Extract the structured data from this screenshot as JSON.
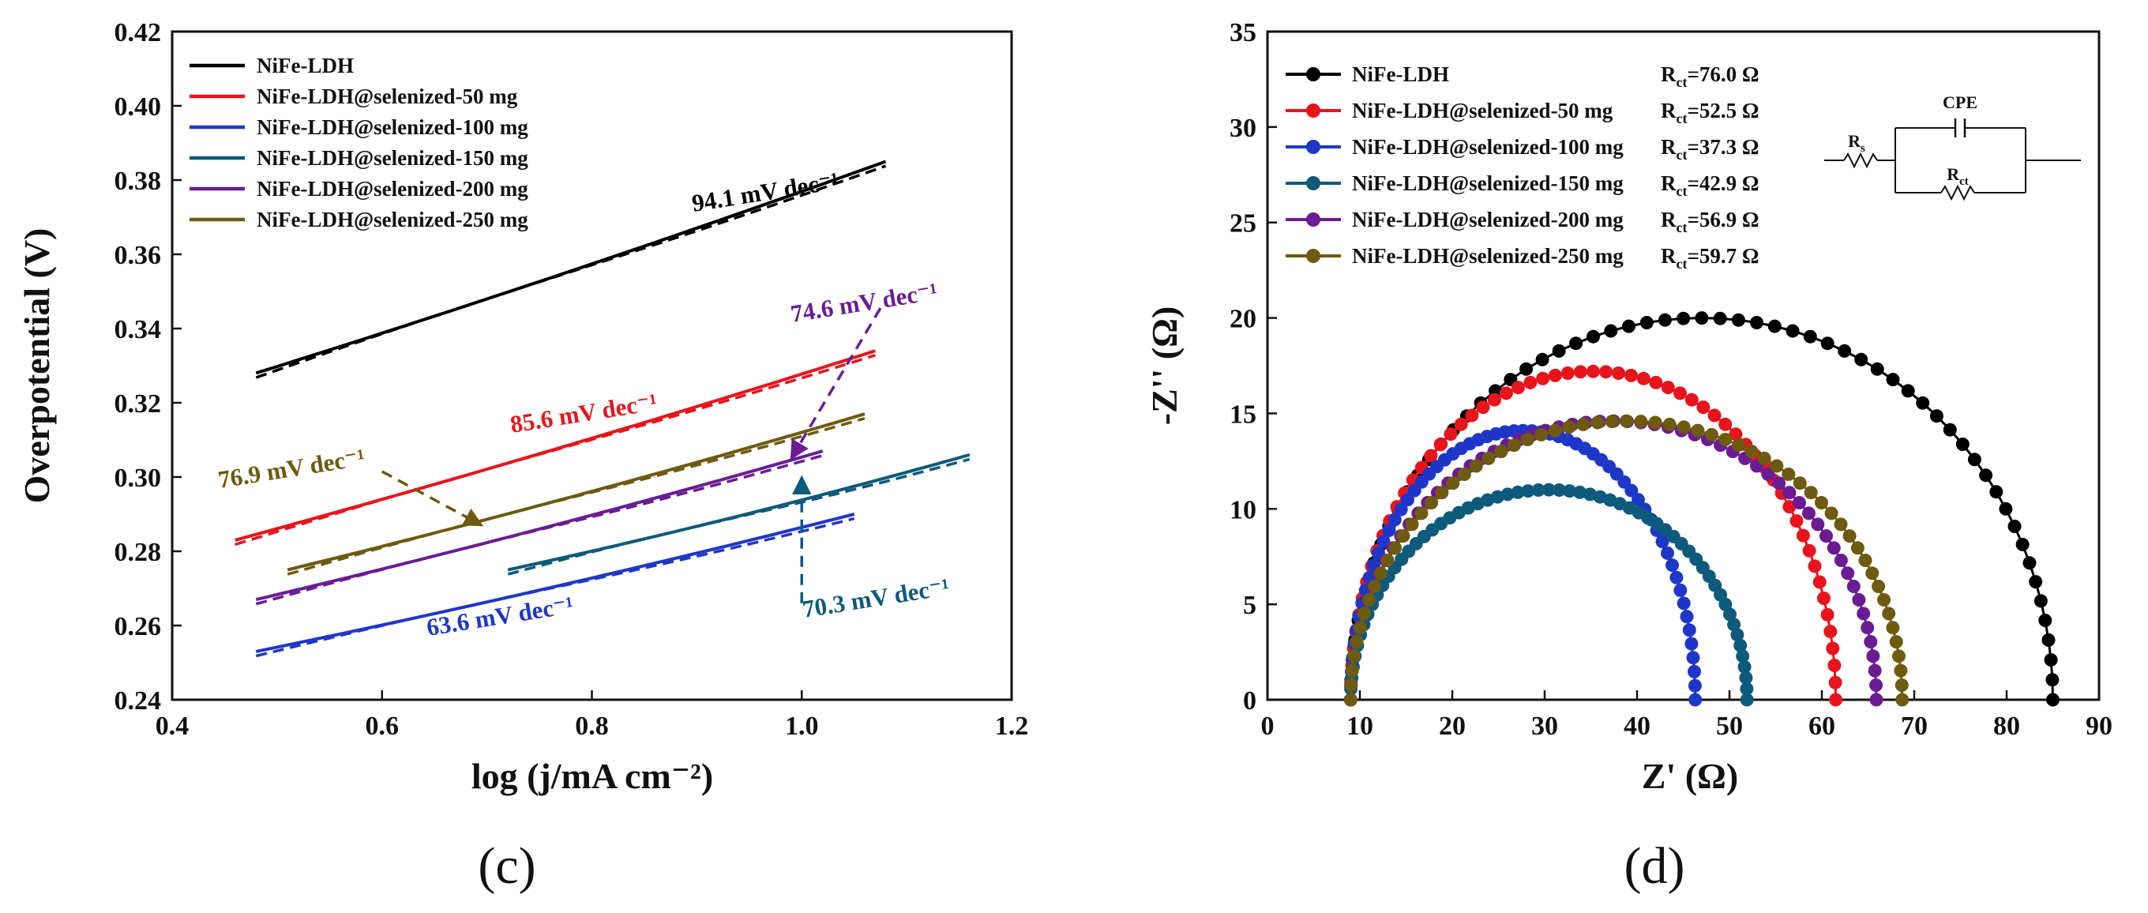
{
  "chart_data": [
    {
      "type": "line",
      "panel_label": "(c)",
      "title": "",
      "xlabel": "log (j/mA cm⁻²)",
      "ylabel": "Overpotential (V)",
      "xlim": [
        0.4,
        1.2
      ],
      "ylim": [
        0.24,
        0.42
      ],
      "x_ticks": [
        0.4,
        0.6,
        0.8,
        1.0,
        1.2
      ],
      "x_tick_labels": [
        "0.4",
        "0.6",
        "0.8",
        "1.0",
        "1.2"
      ],
      "y_ticks": [
        0.24,
        0.26,
        0.28,
        0.3,
        0.32,
        0.34,
        0.36,
        0.38,
        0.4,
        0.42
      ],
      "y_tick_labels": [
        "0.24",
        "0.26",
        "0.28",
        "0.30",
        "0.32",
        "0.34",
        "0.36",
        "0.38",
        "0.40",
        "0.42"
      ],
      "legend_position": "top-left",
      "series": [
        {
          "name": "NiFe-LDH",
          "color": "#000000",
          "x": [
            0.48,
            1.08
          ],
          "y": [
            0.328,
            0.385
          ],
          "slope_label": "94.1 mV dec⁻¹"
        },
        {
          "name": "NiFe-LDH@selenized-50 mg",
          "color": "#e8141b",
          "x": [
            0.46,
            1.07
          ],
          "y": [
            0.283,
            0.334
          ],
          "slope_label": "85.6 mV dec⁻¹"
        },
        {
          "name": "NiFe-LDH@selenized-100 mg",
          "color": "#1f37c8",
          "x": [
            0.48,
            1.05
          ],
          "y": [
            0.253,
            0.29
          ],
          "slope_label": "63.6 mV dec⁻¹"
        },
        {
          "name": "NiFe-LDH@selenized-150 mg",
          "color": "#0e5a7c",
          "x": [
            0.72,
            1.16
          ],
          "y": [
            0.275,
            0.306
          ],
          "slope_label": "70.3 mV dec⁻¹"
        },
        {
          "name": "NiFe-LDH@selenized-200 mg",
          "color": "#6b1c94",
          "x": [
            0.48,
            1.02
          ],
          "y": [
            0.267,
            0.307
          ],
          "slope_label": "74.6 mV dec⁻¹"
        },
        {
          "name": "NiFe-LDH@selenized-250 mg",
          "color": "#6e5a10",
          "x": [
            0.51,
            1.06
          ],
          "y": [
            0.275,
            0.317
          ],
          "slope_label": "76.9 mV dec⁻¹"
        }
      ]
    },
    {
      "type": "scatter",
      "panel_label": "(d)",
      "title": "",
      "xlabel": "Z' (Ω)",
      "ylabel": "-Z'' (Ω)",
      "xlim": [
        0,
        90
      ],
      "ylim": [
        0,
        35
      ],
      "x_ticks": [
        0,
        10,
        20,
        30,
        40,
        50,
        60,
        70,
        80,
        90
      ],
      "x_tick_labels": [
        "0",
        "10",
        "20",
        "30",
        "40",
        "50",
        "60",
        "70",
        "80",
        "90"
      ],
      "y_ticks": [
        0,
        5,
        10,
        15,
        20,
        25,
        30,
        35
      ],
      "y_tick_labels": [
        "0",
        "5",
        "10",
        "15",
        "20",
        "25",
        "30",
        "35"
      ],
      "legend_position": "top-left",
      "circuit": {
        "cpe_label": "CPE",
        "rs_label": "R",
        "rs_sub": "s",
        "rct_label": "R",
        "rct_sub": "ct"
      },
      "series": [
        {
          "name": "NiFe-LDH",
          "rct_prefix": "R",
          "rct_sub": "ct",
          "rct_value": "=76.0 Ω",
          "color": "#000000",
          "z_start": 9.0,
          "z_end": 85.0,
          "peak": 20.0
        },
        {
          "name": "NiFe-LDH@selenized-50 mg",
          "rct_prefix": "R",
          "rct_sub": "ct",
          "rct_value": "=52.5 Ω",
          "color": "#e8141b",
          "z_start": 9.0,
          "z_end": 61.5,
          "peak": 17.2
        },
        {
          "name": "NiFe-LDH@selenized-100 mg",
          "rct_prefix": "R",
          "rct_sub": "ct",
          "rct_value": "=37.3 Ω",
          "color": "#1f37c8",
          "z_start": 9.0,
          "z_end": 46.3,
          "peak": 14.1
        },
        {
          "name": "NiFe-LDH@selenized-150 mg",
          "rct_prefix": "R",
          "rct_sub": "ct",
          "rct_value": "=42.9 Ω",
          "color": "#0e5a7c",
          "z_start": 9.0,
          "z_end": 51.9,
          "peak": 11.0
        },
        {
          "name": "NiFe-LDH@selenized-200 mg",
          "rct_prefix": "R",
          "rct_sub": "ct",
          "rct_value": "=56.9 Ω",
          "color": "#6b1c94",
          "z_start": 9.0,
          "z_end": 65.9,
          "peak": 14.6
        },
        {
          "name": "NiFe-LDH@selenized-250 mg",
          "rct_prefix": "R",
          "rct_sub": "ct",
          "rct_value": "=59.7 Ω",
          "color": "#6e5a10",
          "z_start": 9.0,
          "z_end": 68.7,
          "peak": 14.6
        }
      ]
    }
  ]
}
